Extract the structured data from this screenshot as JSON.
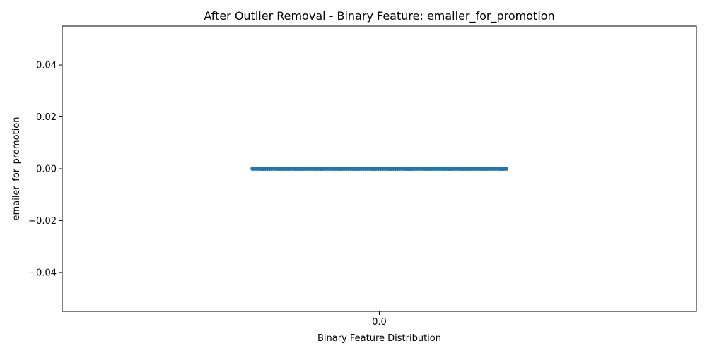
{
  "chart_data": {
    "type": "scatter",
    "title": "After Outlier Removal - Binary Feature: emailer_for_promotion",
    "xlabel": "Binary Feature Distribution",
    "ylabel": "emailer_for_promotion",
    "x_categories": [
      "0.0"
    ],
    "x_jitter_range": [
      -0.2,
      0.2
    ],
    "y_ticks": [
      0.04,
      0.02,
      0.0,
      -0.02,
      -0.04
    ],
    "y_tick_labels": [
      "0.04",
      "0.02",
      "0.00",
      "−0.02",
      "−0.04"
    ],
    "ylim": [
      -0.055,
      0.055
    ],
    "xlim": [
      -0.5,
      0.5
    ],
    "series": [
      {
        "category": "0.0",
        "y": 0.0,
        "x_min": -0.2,
        "x_max": 0.2,
        "color": "#1f77b4"
      }
    ],
    "grid": false,
    "legend": "none"
  }
}
